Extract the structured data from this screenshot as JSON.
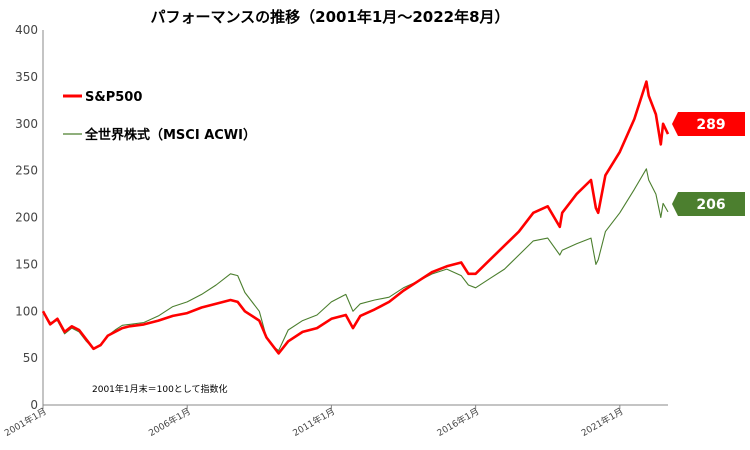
{
  "chart_data": {
    "type": "line",
    "title": "パフォーマンスの推移（2001年1月～2022年8月）",
    "xlabel": "",
    "ylabel": "",
    "ylim": [
      0,
      400
    ],
    "yticks": [
      "400",
      "350",
      "300",
      "250",
      "200",
      "150",
      "100",
      "50",
      "0"
    ],
    "xlim": [
      2001.0,
      2022.67
    ],
    "xticks": [
      {
        "x": 2001.0,
        "label": "2001年1月"
      },
      {
        "x": 2006.0,
        "label": "2006年1月"
      },
      {
        "x": 2011.0,
        "label": "2011年1月"
      },
      {
        "x": 2016.0,
        "label": "2016年1月"
      },
      {
        "x": 2021.0,
        "label": "2021年1月"
      }
    ],
    "grid": false,
    "legend_position": "top-left",
    "note": "2001年1月末＝100として指数化",
    "series": [
      {
        "name": "S&P500",
        "color": "#ff0000",
        "end_label": "289",
        "x": [
          2001.0,
          2001.25,
          2001.5,
          2001.75,
          2002.0,
          2002.25,
          2002.5,
          2002.75,
          2003.0,
          2003.25,
          2003.5,
          2003.75,
          2004.0,
          2004.5,
          2005.0,
          2005.5,
          2006.0,
          2006.5,
          2007.0,
          2007.5,
          2007.75,
          2008.0,
          2008.5,
          2008.75,
          2009.0,
          2009.17,
          2009.5,
          2010.0,
          2010.5,
          2011.0,
          2011.5,
          2011.75,
          2012.0,
          2012.5,
          2013.0,
          2013.5,
          2014.0,
          2014.5,
          2015.0,
          2015.5,
          2015.75,
          2016.0,
          2016.5,
          2017.0,
          2017.5,
          2018.0,
          2018.5,
          2018.92,
          2019.0,
          2019.5,
          2020.0,
          2020.17,
          2020.25,
          2020.5,
          2021.0,
          2021.5,
          2021.92,
          2022.0,
          2022.25,
          2022.42,
          2022.5,
          2022.67
        ],
        "values": [
          100,
          86,
          92,
          78,
          84,
          80,
          70,
          60,
          64,
          74,
          78,
          82,
          84,
          86,
          90,
          95,
          98,
          104,
          108,
          112,
          110,
          100,
          90,
          72,
          62,
          55,
          68,
          78,
          82,
          92,
          96,
          82,
          95,
          102,
          110,
          122,
          132,
          142,
          148,
          152,
          140,
          140,
          155,
          170,
          185,
          205,
          212,
          190,
          205,
          225,
          240,
          210,
          205,
          245,
          270,
          305,
          345,
          330,
          310,
          278,
          300,
          289
        ]
      },
      {
        "name": "全世界株式（MSCI ACWI）",
        "color": "#4c7f2f",
        "end_label": "206",
        "x": [
          2001.0,
          2001.25,
          2001.5,
          2001.75,
          2002.0,
          2002.25,
          2002.5,
          2002.75,
          2003.0,
          2003.25,
          2003.5,
          2003.75,
          2004.0,
          2004.5,
          2005.0,
          2005.5,
          2006.0,
          2006.5,
          2007.0,
          2007.5,
          2007.75,
          2008.0,
          2008.5,
          2008.75,
          2009.0,
          2009.17,
          2009.5,
          2010.0,
          2010.5,
          2011.0,
          2011.5,
          2011.75,
          2012.0,
          2012.5,
          2013.0,
          2013.5,
          2014.0,
          2014.5,
          2015.0,
          2015.5,
          2015.75,
          2016.0,
          2016.5,
          2017.0,
          2017.5,
          2018.0,
          2018.5,
          2018.92,
          2019.0,
          2019.5,
          2020.0,
          2020.17,
          2020.25,
          2020.5,
          2021.0,
          2021.5,
          2021.92,
          2022.0,
          2022.25,
          2022.42,
          2022.5,
          2022.67
        ],
        "values": [
          100,
          88,
          90,
          76,
          82,
          78,
          68,
          60,
          63,
          74,
          80,
          85,
          86,
          88,
          95,
          105,
          110,
          118,
          128,
          140,
          138,
          120,
          100,
          72,
          62,
          58,
          80,
          90,
          96,
          110,
          118,
          100,
          108,
          112,
          115,
          125,
          132,
          140,
          145,
          138,
          128,
          125,
          135,
          145,
          160,
          175,
          178,
          160,
          165,
          172,
          178,
          150,
          155,
          185,
          205,
          230,
          252,
          240,
          225,
          200,
          215,
          206
        ]
      }
    ]
  }
}
